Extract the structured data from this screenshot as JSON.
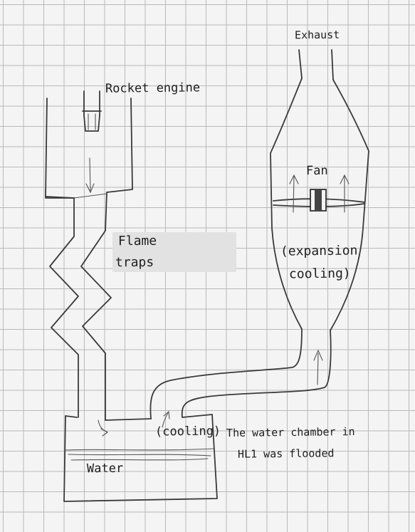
{
  "labels": {
    "exhaust": "Exhaust",
    "rocket_engine": "Rocket engine",
    "fan": "Fan",
    "flame": "Flame",
    "traps": "traps",
    "expansion": "(expansion",
    "cooling_expansion": "cooling)",
    "cooling_water": "(cooling)",
    "water": "Water",
    "note_line1": "The water chamber in",
    "note_line2": "HL1 was flooded"
  },
  "colors": {
    "paper": "#f4f4f4",
    "grid": "#b9b9b9",
    "ink": "#3a3a3a",
    "patch": "#e2e2e2"
  }
}
